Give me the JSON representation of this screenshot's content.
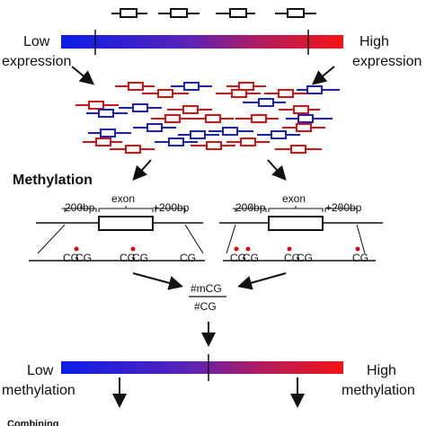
{
  "top_bar": {
    "left_label_line1": "Low",
    "left_label_line2": "expression",
    "right_label_line1": "High",
    "right_label_line2": "expression",
    "gradient": [
      "#0a24e6",
      "#6a20b0",
      "#f01818"
    ]
  },
  "methylation_section": {
    "title": "Methylation",
    "left_gene": {
      "upstream": "-200bp",
      "exon": "exon",
      "downstream": "+200bp",
      "sites": [
        "CG",
        "CG",
        "CG",
        "CG",
        "CG"
      ]
    },
    "right_gene": {
      "upstream": "-200bp",
      "exon": "exon",
      "downstream": "+200bp",
      "sites": [
        "CG",
        "CG",
        "CG",
        "CG",
        "CG"
      ]
    },
    "methylated_dot_color": "#d01010"
  },
  "ratio": {
    "numerator": "#mCG",
    "denominator": "#CG"
  },
  "bottom_bar": {
    "left_label_line1": "Low",
    "left_label_line2": "methylation",
    "right_label_line1": "High",
    "right_label_line2": "methylation"
  },
  "footer_partial": "Combining",
  "colors": {
    "blue_gene": "#1a20c8",
    "red_gene": "#d41414"
  }
}
